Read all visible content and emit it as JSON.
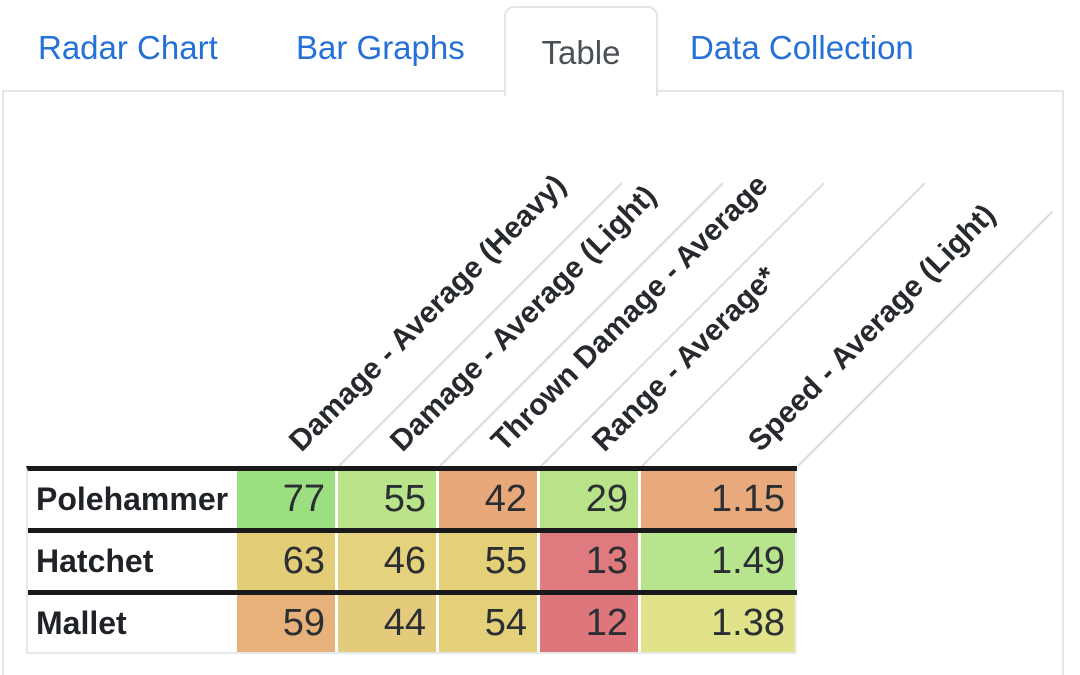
{
  "tabs": {
    "items": [
      {
        "label": "Radar Chart",
        "active": false
      },
      {
        "label": "Bar Graphs",
        "active": false
      },
      {
        "label": "Table",
        "active": true
      },
      {
        "label": "Data Collection",
        "active": false
      }
    ]
  },
  "table": {
    "column_headers": [
      "Damage - Average (Heavy)",
      "Damage - Average (Light)",
      "Thrown Damage - Average",
      "Range - Average*",
      "Speed - Average (Light)"
    ],
    "rows": [
      {
        "name": "Polehammer",
        "values": [
          "77",
          "55",
          "42",
          "29",
          "1.15"
        ],
        "cell_colors": [
          "#9bdf80",
          "#bae48a",
          "#e8a87a",
          "#b9e388",
          "#e8aa7d"
        ]
      },
      {
        "name": "Hatchet",
        "values": [
          "63",
          "46",
          "55",
          "13",
          "1.49"
        ],
        "cell_colors": [
          "#e3cd76",
          "#e5d27d",
          "#e4d078",
          "#df7b7f",
          "#b7e48c"
        ]
      },
      {
        "name": "Mallet",
        "values": [
          "59",
          "44",
          "54",
          "12",
          "1.38"
        ],
        "cell_colors": [
          "#e7b179",
          "#e4cb7c",
          "#e3d078",
          "#de777c",
          "#e0e389"
        ]
      }
    ]
  },
  "chart_data": {
    "type": "table",
    "title": "",
    "columns": [
      "Damage - Average (Heavy)",
      "Damage - Average (Light)",
      "Thrown Damage - Average",
      "Range - Average*",
      "Speed - Average (Light)"
    ],
    "rows": [
      {
        "name": "Polehammer",
        "values": [
          77,
          55,
          42,
          29,
          1.15
        ]
      },
      {
        "name": "Hatchet",
        "values": [
          63,
          46,
          55,
          13,
          1.49
        ]
      },
      {
        "name": "Mallet",
        "values": [
          59,
          44,
          54,
          12,
          1.38
        ]
      }
    ]
  },
  "colors": {
    "tab_link": "#2571d8",
    "active_tab_text": "#4a5056",
    "panel_border": "#e2e5e9",
    "table_border_black": "#1a1a1c",
    "header_divider_line": "#d8dbdf"
  }
}
